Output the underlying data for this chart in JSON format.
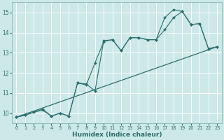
{
  "xlabel": "Humidex (Indice chaleur)",
  "bg_color": "#cce8e8",
  "grid_color": "#ffffff",
  "line_color": "#2d6e6e",
  "xlim": [
    -0.5,
    23.5
  ],
  "ylim": [
    9.5,
    15.5
  ],
  "xticks": [
    0,
    1,
    2,
    3,
    4,
    5,
    6,
    7,
    8,
    9,
    10,
    11,
    12,
    13,
    14,
    15,
    16,
    17,
    18,
    19,
    20,
    21,
    22,
    23
  ],
  "yticks": [
    10,
    11,
    12,
    13,
    14,
    15
  ],
  "line1_x": [
    0,
    1,
    2,
    3,
    4,
    5,
    6,
    7,
    8,
    9,
    10,
    11,
    12,
    13,
    14,
    15,
    16,
    17,
    18,
    19,
    20,
    21,
    22,
    23
  ],
  "line1_y": [
    9.8,
    9.9,
    10.05,
    10.15,
    9.85,
    10.0,
    9.85,
    11.5,
    11.45,
    11.1,
    13.6,
    13.65,
    13.1,
    13.75,
    13.75,
    13.65,
    13.65,
    14.75,
    15.15,
    15.05,
    14.4,
    14.45,
    13.2,
    13.3
  ],
  "line2_x": [
    0,
    1,
    2,
    3,
    4,
    5,
    6,
    7,
    8,
    9,
    10,
    11,
    12,
    13,
    14,
    15,
    16,
    17,
    18,
    19,
    20,
    21,
    22,
    23
  ],
  "line2_y": [
    9.8,
    9.9,
    10.05,
    10.2,
    9.85,
    10.0,
    9.85,
    11.5,
    11.4,
    12.5,
    13.55,
    13.65,
    13.1,
    13.75,
    13.75,
    13.65,
    13.65,
    14.15,
    14.75,
    15.05,
    14.4,
    14.45,
    13.2,
    13.3
  ],
  "line3_x": [
    0,
    23
  ],
  "line3_y": [
    9.8,
    13.3
  ]
}
